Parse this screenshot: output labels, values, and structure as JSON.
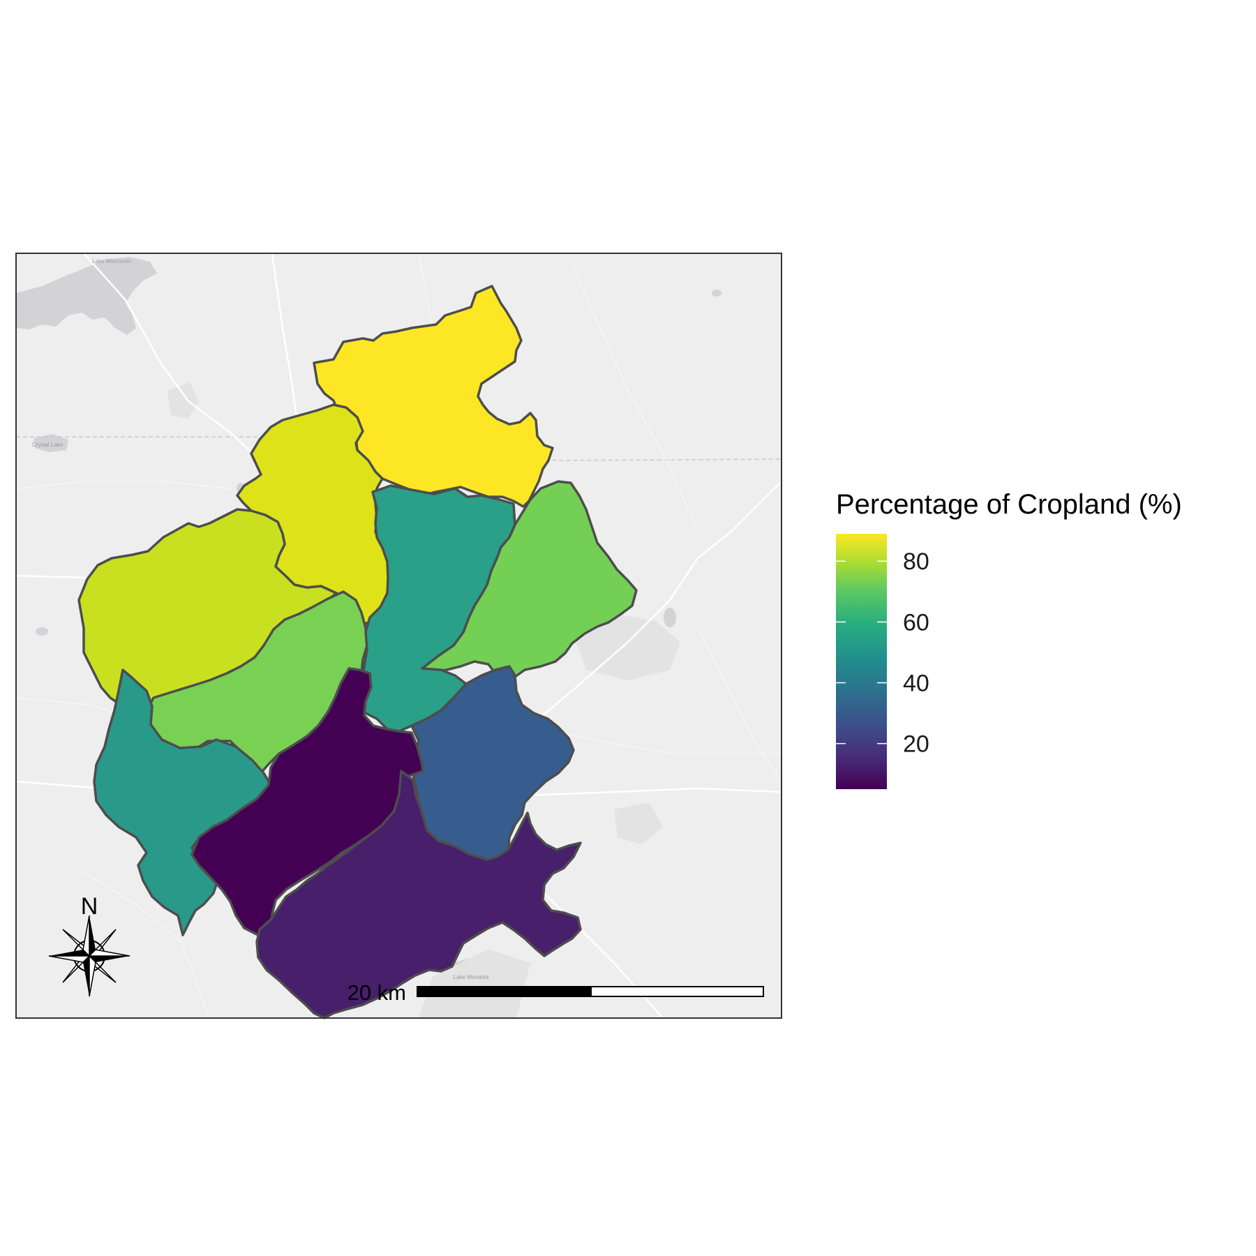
{
  "legend": {
    "title": "Percentage of Cropland (%)",
    "ticks": [
      {
        "label": "80",
        "value": 80
      },
      {
        "label": "60",
        "value": 60
      },
      {
        "label": "40",
        "value": 40
      },
      {
        "label": "20",
        "value": 20
      }
    ],
    "min": 5,
    "max": 89,
    "colormap": "viridis",
    "colors": [
      "#440154",
      "#3b528b",
      "#21918c",
      "#5ec962",
      "#fde725"
    ]
  },
  "scale_bar": {
    "label": "20 km",
    "segments": [
      "black",
      "white"
    ]
  },
  "north_arrow": {
    "label": "N",
    "icon": "compass-rose-icon"
  },
  "basemap": {
    "labels": [
      "Lake Wisconsin",
      "Crystal Lake",
      "Lake Mendota"
    ]
  },
  "regions": [
    {
      "id": "north",
      "cropland_pct": 89,
      "color": "#fde725"
    },
    {
      "id": "north-west",
      "cropland_pct": 83,
      "color": "#dde318"
    },
    {
      "id": "west",
      "cropland_pct": 80,
      "color": "#c8e020"
    },
    {
      "id": "east",
      "cropland_pct": 70,
      "color": "#73d055"
    },
    {
      "id": "center-west",
      "cropland_pct": 71,
      "color": "#78d152"
    },
    {
      "id": "center",
      "cropland_pct": 54,
      "color": "#29a087"
    },
    {
      "id": "south-west",
      "cropland_pct": 53,
      "color": "#29998a"
    },
    {
      "id": "south-east",
      "cropland_pct": 33,
      "color": "#365d8d"
    },
    {
      "id": "south-center",
      "cropland_pct": 5,
      "color": "#440154"
    },
    {
      "id": "south",
      "cropland_pct": 12,
      "color": "#481f6a"
    }
  ]
}
